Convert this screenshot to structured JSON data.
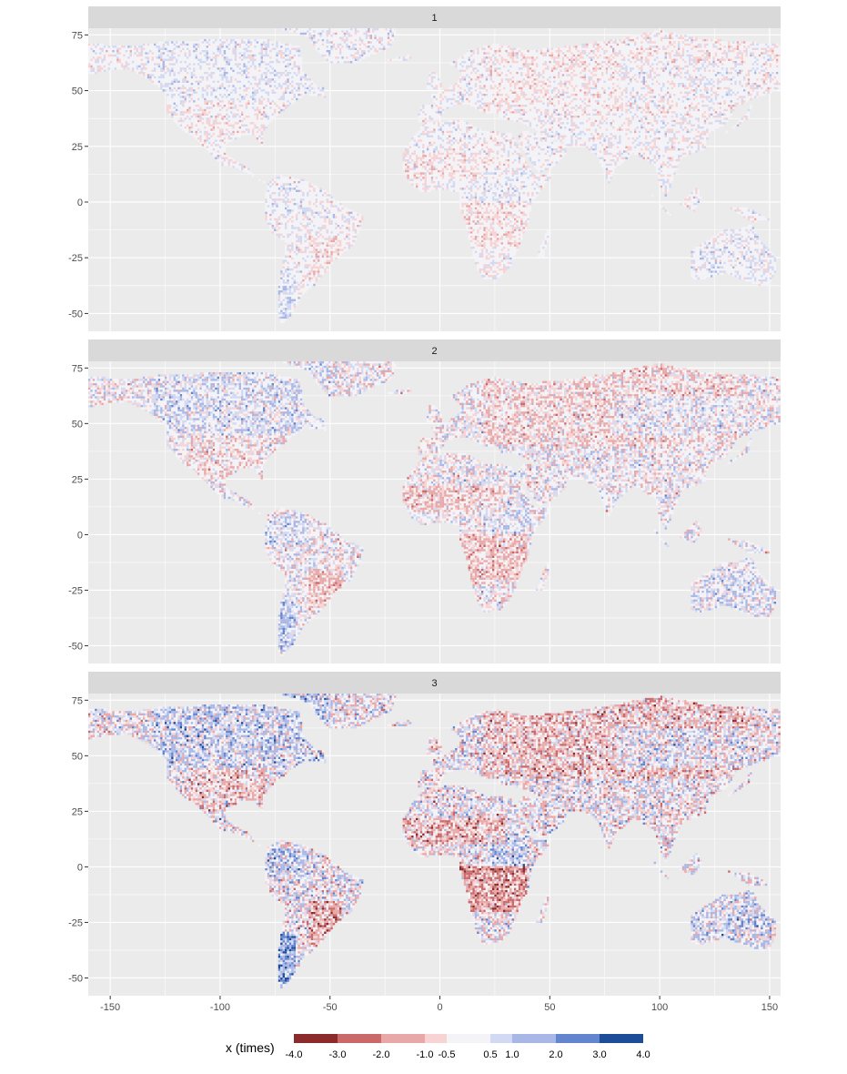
{
  "chart_data": {
    "type": "heatmap",
    "panels": [
      "1",
      "2",
      "3"
    ],
    "x_ticks": [
      -150,
      -100,
      -50,
      0,
      50,
      100,
      150
    ],
    "x_tick_labels": [
      "-150",
      "-100",
      "-50",
      "0",
      "50",
      "100",
      "150"
    ],
    "y_ticks": [
      75,
      50,
      25,
      0,
      -25,
      -50
    ],
    "y_tick_labels": [
      "75",
      "50",
      "25",
      "0",
      "-25",
      "-50"
    ],
    "xlim": [
      -160,
      155
    ],
    "ylim": [
      -58,
      78
    ],
    "grid": true,
    "legend": {
      "title": "x (times)",
      "placement": "bottom",
      "breaks": [
        -4.0,
        -3.0,
        -2.0,
        -1.0,
        -0.5,
        0.5,
        1.0,
        2.0,
        3.0,
        4.0
      ],
      "break_labels": [
        "-4.0",
        "-3.0",
        "-2.0",
        "-1.0",
        "-0.5",
        "0.5",
        "1.0",
        "2.0",
        "3.0",
        "4.0"
      ],
      "colors": [
        "#8b2b2b",
        "#c9696a",
        "#e9a8a8",
        "#f7d3d3",
        "#f4f4f8",
        "#d2d9f2",
        "#a9b7e6",
        "#6384cf",
        "#1d4d98"
      ]
    }
  }
}
